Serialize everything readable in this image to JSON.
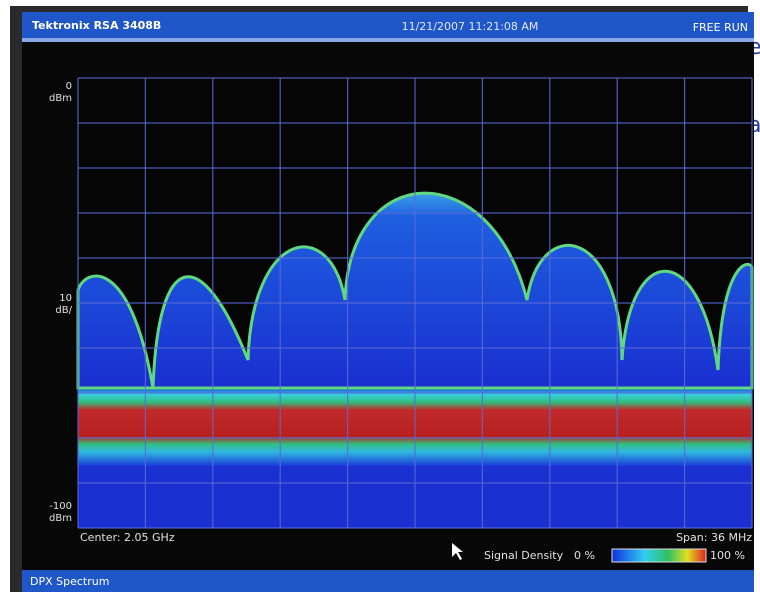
{
  "background": {
    "fragments": [
      "e",
      "a"
    ]
  },
  "header": {
    "instrument": "Tektronix RSA 3408B",
    "timestamp": "11/21/2007 11:21:08 AM",
    "mode": "FREE RUN"
  },
  "display": {
    "ref_level": "0",
    "ref_unit": "dBm",
    "scale_value": "10",
    "scale_unit": "dB/",
    "bottom_level": "-100",
    "bottom_unit": "dBm",
    "center": "Center: 2.05 GHz",
    "span": "Span: 36 MHz",
    "density_label": "Signal Density",
    "density_min": "0 %",
    "density_max": "100 %"
  },
  "footer": {
    "title": "DPX Spectrum"
  }
}
